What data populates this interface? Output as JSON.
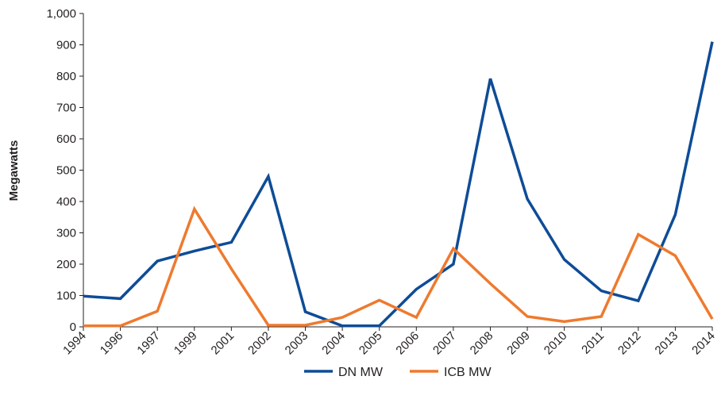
{
  "chart_data": {
    "type": "line",
    "ylabel": "Megawatts",
    "xlabel": "",
    "ylim": [
      0,
      1000
    ],
    "yticks": [
      0,
      100,
      200,
      300,
      400,
      500,
      600,
      700,
      800,
      900,
      1000
    ],
    "ytick_labels": [
      "0",
      "100",
      "200",
      "300",
      "400",
      "500",
      "600",
      "700",
      "800",
      "900",
      "1,000"
    ],
    "categories": [
      "1994",
      "1996",
      "1997",
      "1999",
      "2001",
      "2002",
      "2003",
      "2004",
      "2005",
      "2006",
      "2007",
      "2008",
      "2009",
      "2010",
      "2011",
      "2012",
      "2013",
      "2014"
    ],
    "series": [
      {
        "name": "DN MW",
        "color": "#0e4c97",
        "values": [
          98,
          90,
          210,
          242,
          270,
          480,
          48,
          3,
          3,
          120,
          200,
          792,
          408,
          215,
          115,
          83,
          358,
          910
        ]
      },
      {
        "name": "ICB MW",
        "color": "#ee7a2e",
        "values": [
          3,
          3,
          50,
          376,
          185,
          5,
          5,
          30,
          85,
          30,
          250,
          138,
          33,
          17,
          33,
          295,
          227,
          25
        ]
      }
    ],
    "grid": false,
    "legend_position": "bottom-center"
  }
}
